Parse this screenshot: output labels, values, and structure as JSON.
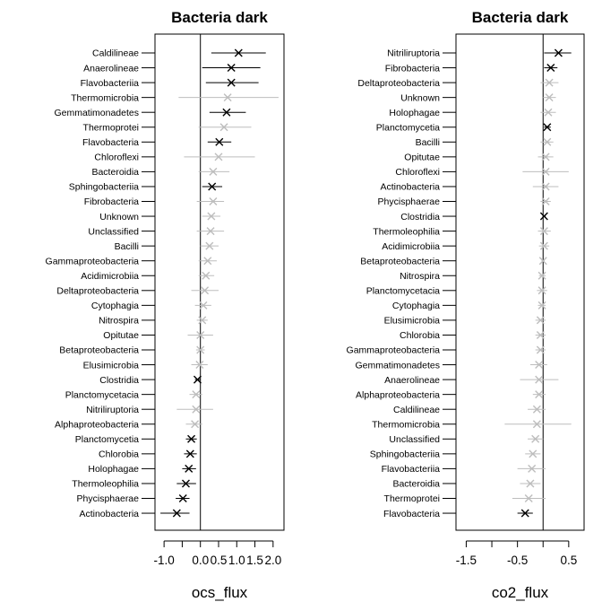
{
  "chart_data": [
    {
      "type": "forest",
      "title": "Bacteria dark",
      "xlabel": "ocs_flux",
      "xticks": [
        -1.0,
        -0.5,
        0.0,
        0.5,
        1.0,
        1.5,
        2.0
      ],
      "xtick_labels": [
        "-1.0",
        "",
        "0.0",
        "0.5",
        "1.0",
        "1.5",
        "2.0"
      ],
      "xlim": [
        -1.25,
        2.3
      ],
      "reference_line": 0,
      "colors": {
        "significant": "#000000",
        "not_significant": "#bdbdbd"
      },
      "rows": [
        {
          "label": "Caldilineae",
          "est": 1.05,
          "lo": 0.3,
          "hi": 1.8,
          "sig": true
        },
        {
          "label": "Anaerolineae",
          "est": 0.85,
          "lo": 0.05,
          "hi": 1.65,
          "sig": true
        },
        {
          "label": "Flavobacteriia",
          "est": 0.85,
          "lo": 0.15,
          "hi": 1.6,
          "sig": true
        },
        {
          "label": "Thermomicrobia",
          "est": 0.75,
          "lo": -0.6,
          "hi": 2.15,
          "sig": false
        },
        {
          "label": "Gemmatimonadetes",
          "est": 0.72,
          "lo": 0.25,
          "hi": 1.25,
          "sig": true
        },
        {
          "label": "Thermoprotei",
          "est": 0.65,
          "lo": -0.05,
          "hi": 1.4,
          "sig": false
        },
        {
          "label": "Flavobacteria",
          "est": 0.52,
          "lo": 0.2,
          "hi": 0.85,
          "sig": true
        },
        {
          "label": "Chloroflexi",
          "est": 0.5,
          "lo": -0.45,
          "hi": 1.5,
          "sig": false
        },
        {
          "label": "Bacteroidia",
          "est": 0.35,
          "lo": -0.05,
          "hi": 0.8,
          "sig": false
        },
        {
          "label": "Sphingobacteriia",
          "est": 0.32,
          "lo": 0.05,
          "hi": 0.6,
          "sig": true
        },
        {
          "label": "Fibrobacteria",
          "est": 0.35,
          "lo": -0.1,
          "hi": 0.65,
          "sig": false
        },
        {
          "label": "Unknown",
          "est": 0.3,
          "lo": 0.05,
          "hi": 0.55,
          "sig": false
        },
        {
          "label": "Unclassified",
          "est": 0.28,
          "lo": -0.1,
          "hi": 0.65,
          "sig": false
        },
        {
          "label": "Bacilli",
          "est": 0.25,
          "lo": 0.0,
          "hi": 0.5,
          "sig": false
        },
        {
          "label": "Gammaproteobacteria",
          "est": 0.2,
          "lo": -0.05,
          "hi": 0.45,
          "sig": false
        },
        {
          "label": "Acidimicrobiia",
          "est": 0.15,
          "lo": -0.05,
          "hi": 0.38,
          "sig": false
        },
        {
          "label": "Deltaproteobacteria",
          "est": 0.12,
          "lo": -0.25,
          "hi": 0.5,
          "sig": false
        },
        {
          "label": "Cytophagia",
          "est": 0.08,
          "lo": -0.15,
          "hi": 0.3,
          "sig": false
        },
        {
          "label": "Nitrospira",
          "est": 0.05,
          "lo": -0.1,
          "hi": 0.2,
          "sig": false
        },
        {
          "label": "Opitutae",
          "est": 0.0,
          "lo": -0.35,
          "hi": 0.35,
          "sig": false
        },
        {
          "label": "Betaproteobacteria",
          "est": 0.0,
          "lo": -0.12,
          "hi": 0.12,
          "sig": false
        },
        {
          "label": "Elusimicrobia",
          "est": -0.02,
          "lo": -0.25,
          "hi": 0.2,
          "sig": false
        },
        {
          "label": "Clostridia",
          "est": -0.08,
          "lo": -0.15,
          "hi": 0.0,
          "sig": true
        },
        {
          "label": "Planctomycetacia",
          "est": -0.12,
          "lo": -0.3,
          "hi": 0.05,
          "sig": false
        },
        {
          "label": "Nitriliruptoria",
          "est": -0.12,
          "lo": -0.65,
          "hi": 0.35,
          "sig": false
        },
        {
          "label": "Alphaproteobacteria",
          "est": -0.15,
          "lo": -0.4,
          "hi": 0.05,
          "sig": false
        },
        {
          "label": "Planctomycetia",
          "est": -0.25,
          "lo": -0.4,
          "hi": -0.1,
          "sig": true
        },
        {
          "label": "Chlorobia",
          "est": -0.28,
          "lo": -0.45,
          "hi": -0.1,
          "sig": true
        },
        {
          "label": "Holophagae",
          "est": -0.32,
          "lo": -0.5,
          "hi": -0.12,
          "sig": true
        },
        {
          "label": "Thermoleophilia",
          "est": -0.4,
          "lo": -0.65,
          "hi": -0.12,
          "sig": true
        },
        {
          "label": "Phycisphaerae",
          "est": -0.48,
          "lo": -0.68,
          "hi": -0.3,
          "sig": true
        },
        {
          "label": "Actinobacteria",
          "est": -0.65,
          "lo": -1.1,
          "hi": -0.3,
          "sig": true
        }
      ]
    },
    {
      "type": "forest",
      "title": "Bacteria dark",
      "xlabel": "co2_flux",
      "xticks": [
        -1.5,
        -1.0,
        -0.5,
        0.0,
        0.5
      ],
      "xtick_labels": [
        "-1.5",
        "",
        "-0.5",
        "",
        "0.5"
      ],
      "xlim": [
        -1.7,
        0.8
      ],
      "reference_line": 0,
      "colors": {
        "significant": "#000000",
        "not_significant": "#bdbdbd"
      },
      "rows": [
        {
          "label": "Nitriliruptoria",
          "est": 0.3,
          "lo": 0.02,
          "hi": 0.55,
          "sig": true
        },
        {
          "label": "Fibrobacteria",
          "est": 0.15,
          "lo": 0.02,
          "hi": 0.28,
          "sig": true
        },
        {
          "label": "Deltaproteobacteria",
          "est": 0.12,
          "lo": -0.05,
          "hi": 0.3,
          "sig": false
        },
        {
          "label": "Unknown",
          "est": 0.12,
          "lo": 0.0,
          "hi": 0.25,
          "sig": false
        },
        {
          "label": "Holophagae",
          "est": 0.1,
          "lo": -0.05,
          "hi": 0.25,
          "sig": false
        },
        {
          "label": "Planctomycetia",
          "est": 0.08,
          "lo": 0.02,
          "hi": 0.15,
          "sig": true
        },
        {
          "label": "Bacilli",
          "est": 0.08,
          "lo": -0.05,
          "hi": 0.2,
          "sig": false
        },
        {
          "label": "Opitutae",
          "est": 0.05,
          "lo": -0.1,
          "hi": 0.2,
          "sig": false
        },
        {
          "label": "Chloroflexi",
          "est": 0.05,
          "lo": -0.4,
          "hi": 0.5,
          "sig": false
        },
        {
          "label": "Actinobacteria",
          "est": 0.05,
          "lo": -0.2,
          "hi": 0.3,
          "sig": false
        },
        {
          "label": "Phycisphaerae",
          "est": 0.05,
          "lo": -0.05,
          "hi": 0.15,
          "sig": false
        },
        {
          "label": "Clostridia",
          "est": 0.02,
          "lo": -0.01,
          "hi": 0.05,
          "sig": true
        },
        {
          "label": "Thermoleophilia",
          "est": 0.02,
          "lo": -0.1,
          "hi": 0.15,
          "sig": false
        },
        {
          "label": "Acidimicrobiia",
          "est": 0.02,
          "lo": -0.08,
          "hi": 0.12,
          "sig": false
        },
        {
          "label": "Betaproteobacteria",
          "est": 0.0,
          "lo": -0.03,
          "hi": 0.03,
          "sig": false
        },
        {
          "label": "Nitrospira",
          "est": -0.02,
          "lo": -0.08,
          "hi": 0.05,
          "sig": false
        },
        {
          "label": "Planctomycetacia",
          "est": -0.02,
          "lo": -0.12,
          "hi": 0.08,
          "sig": false
        },
        {
          "label": "Cytophagia",
          "est": -0.02,
          "lo": -0.1,
          "hi": 0.05,
          "sig": false
        },
        {
          "label": "Elusimicrobia",
          "est": -0.05,
          "lo": -0.15,
          "hi": 0.05,
          "sig": false
        },
        {
          "label": "Chlorobia",
          "est": -0.05,
          "lo": -0.15,
          "hi": 0.05,
          "sig": false
        },
        {
          "label": "Gammaproteobacteria",
          "est": -0.05,
          "lo": -0.15,
          "hi": 0.05,
          "sig": false
        },
        {
          "label": "Gemmatimonadetes",
          "est": -0.08,
          "lo": -0.25,
          "hi": 0.08,
          "sig": false
        },
        {
          "label": "Anaerolineae",
          "est": -0.08,
          "lo": -0.45,
          "hi": 0.3,
          "sig": false
        },
        {
          "label": "Alphaproteobacteria",
          "est": -0.08,
          "lo": -0.2,
          "hi": 0.05,
          "sig": false
        },
        {
          "label": "Caldilineae",
          "est": -0.12,
          "lo": -0.3,
          "hi": 0.05,
          "sig": false
        },
        {
          "label": "Thermomicrobia",
          "est": -0.12,
          "lo": -0.75,
          "hi": 0.55,
          "sig": false
        },
        {
          "label": "Unclassified",
          "est": -0.15,
          "lo": -0.3,
          "hi": 0.0,
          "sig": false
        },
        {
          "label": "Sphingobacteriia",
          "est": -0.2,
          "lo": -0.35,
          "hi": -0.05,
          "sig": false
        },
        {
          "label": "Flavobacteriia",
          "est": -0.22,
          "lo": -0.5,
          "hi": 0.05,
          "sig": false
        },
        {
          "label": "Bacteroidia",
          "est": -0.25,
          "lo": -0.45,
          "hi": -0.05,
          "sig": false
        },
        {
          "label": "Thermoprotei",
          "est": -0.28,
          "lo": -0.6,
          "hi": 0.05,
          "sig": false
        },
        {
          "label": "Flavobacteria",
          "est": -0.35,
          "lo": -0.5,
          "hi": -0.2,
          "sig": true
        }
      ]
    }
  ]
}
